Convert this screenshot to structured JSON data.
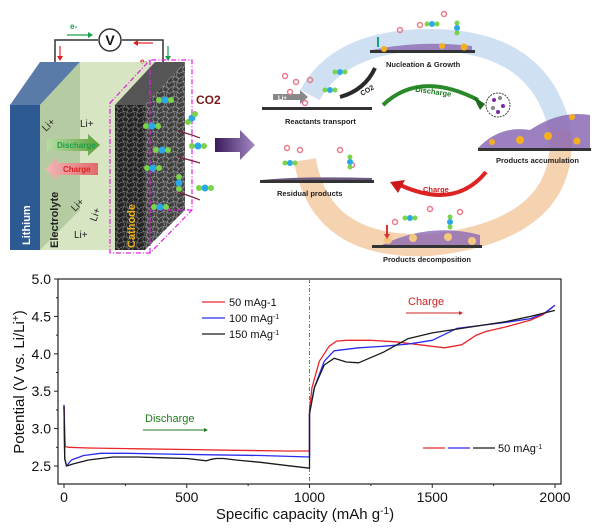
{
  "schematic": {
    "voltmeter": "V",
    "electron_top": "e-",
    "electron_left": "e-",
    "electron_right": "e-",
    "electron_right2": "e-",
    "co2": "CO2",
    "lithium": "Lithium",
    "electrolyte": "Electrolyte",
    "cathode": "Cathode",
    "li_labels": [
      "Li+",
      "Li+",
      "Li+",
      "Li+",
      "Li+"
    ],
    "discharge": "Discharge",
    "charge": "Charge"
  },
  "cycle": {
    "nucleation": "Nucleation & Growth",
    "reactants": "Reactants transport",
    "li_arrow": "Li+",
    "co2": "CO2",
    "discharge": "Discharge",
    "accumulation": "Products accumulation",
    "charge": "Charge",
    "residual": "Residual products",
    "decomposition": "Products decomposition"
  },
  "chart_data": {
    "type": "line",
    "title": "",
    "xlabel": "Specific capacity (mAh g-1)",
    "ylabel": "Potential (V vs. Li/Li+)",
    "xlim": [
      -20,
      2030
    ],
    "ylim": [
      2.25,
      5.0
    ],
    "xticks": [
      "0",
      "500",
      "1000",
      "1500",
      "2000"
    ],
    "xtick_values": [
      0,
      500,
      1000,
      1500,
      2000
    ],
    "yticks": [
      "2.5",
      "3.0",
      "3.5",
      "4.0",
      "4.5",
      "5.0"
    ],
    "ytick_values": [
      2.5,
      3.0,
      3.5,
      4.0,
      4.5,
      5.0
    ],
    "divider_x": 1000,
    "legend": [
      "50 mAg-1",
      "100 mAg-1",
      "150 mAg-1"
    ],
    "legend_position": "top-left",
    "annotations": {
      "discharge": "Discharge",
      "charge": "Charge",
      "combined_legend": "50 mAg-1"
    },
    "colors": {
      "s50": "#e8262a",
      "s100": "#2b2bee",
      "s150": "#1a1a1a",
      "discharge": "#1e7a1e",
      "charge": "#cc2222"
    },
    "series": [
      {
        "name": "50 mAg-1",
        "color": "#e8262a",
        "x": [
          0,
          5,
          20,
          100,
          300,
          500,
          700,
          900,
          1000,
          1000,
          1010,
          1040,
          1080,
          1110,
          1150,
          1250,
          1350,
          1450,
          1550,
          1620,
          1680,
          1720,
          1800,
          1900,
          1950,
          1990
        ],
        "y": [
          3.3,
          2.76,
          2.75,
          2.74,
          2.73,
          2.72,
          2.71,
          2.7,
          2.7,
          3.25,
          3.55,
          3.9,
          4.1,
          4.17,
          4.18,
          4.18,
          4.16,
          4.12,
          4.08,
          4.12,
          4.25,
          4.3,
          4.36,
          4.45,
          4.52,
          4.62
        ]
      },
      {
        "name": "100 mAg-1",
        "color": "#2b2bee",
        "x": [
          0,
          3,
          10,
          30,
          80,
          150,
          250,
          400,
          600,
          800,
          1000,
          1000,
          1020,
          1060,
          1100,
          1200,
          1300,
          1400,
          1500,
          1550,
          1600,
          1700,
          1800,
          1900,
          1960,
          2000
        ],
        "y": [
          3.32,
          2.6,
          2.5,
          2.58,
          2.64,
          2.67,
          2.67,
          2.66,
          2.65,
          2.64,
          2.62,
          3.2,
          3.55,
          3.9,
          4.04,
          4.08,
          4.1,
          4.13,
          4.18,
          4.26,
          4.34,
          4.38,
          4.42,
          4.47,
          4.55,
          4.65
        ]
      },
      {
        "name": "150 mAg-1",
        "color": "#1a1a1a",
        "x": [
          0,
          3,
          10,
          40,
          100,
          200,
          300,
          400,
          500,
          580,
          600,
          620,
          650,
          700,
          800,
          900,
          1000,
          1000,
          1020,
          1060,
          1100,
          1150,
          1200,
          1300,
          1400,
          1500,
          1600,
          1700,
          1800,
          1900,
          2000
        ],
        "y": [
          3.3,
          2.6,
          2.5,
          2.53,
          2.58,
          2.62,
          2.62,
          2.61,
          2.6,
          2.57,
          2.59,
          2.6,
          2.6,
          2.58,
          2.55,
          2.51,
          2.47,
          3.2,
          3.55,
          3.85,
          3.94,
          3.89,
          3.88,
          4.02,
          4.2,
          4.28,
          4.33,
          4.38,
          4.43,
          4.5,
          4.58
        ]
      }
    ]
  }
}
